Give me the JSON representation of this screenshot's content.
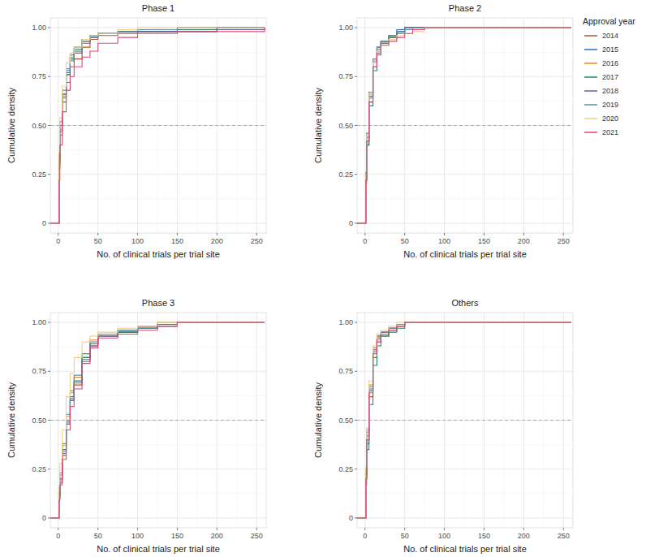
{
  "chart_data": [
    {
      "type": "line",
      "title": "Phase 1",
      "x_label": "No. of clinical trials per trial site",
      "y_label": "Cumulative density",
      "line_style": "step",
      "grid": true,
      "legend": "right",
      "legend_title": "Approval year",
      "hline": 0.5,
      "xlim": [
        -10,
        262
      ],
      "ylim": [
        -0.05,
        1.05
      ],
      "xticks": [
        0,
        50,
        100,
        150,
        200,
        250
      ],
      "yticks": [
        0,
        0.25,
        {
          "value": 0.5,
          "label": "0.50"
        },
        0.75,
        {
          "value": 1,
          "label": "1.00"
        }
      ],
      "x": [
        -10,
        1,
        2,
        5,
        10,
        15,
        20,
        30,
        40,
        50,
        75,
        100,
        150,
        200,
        260
      ],
      "series": [
        {
          "name": "2014",
          "color": "#b5532a",
          "values": [
            0,
            0.28,
            0.45,
            0.62,
            0.72,
            0.8,
            0.84,
            0.9,
            0.94,
            0.96,
            0.97,
            0.98,
            0.98,
            1,
            1
          ]
        },
        {
          "name": "2015",
          "color": "#2b6cb0",
          "values": [
            0,
            0.32,
            0.5,
            0.66,
            0.78,
            0.86,
            0.9,
            0.94,
            0.96,
            0.97,
            0.98,
            0.99,
            0.99,
            1,
            1
          ]
        },
        {
          "name": "2016",
          "color": "#e08a1e",
          "values": [
            0,
            0.3,
            0.48,
            0.65,
            0.76,
            0.84,
            0.88,
            0.93,
            0.95,
            0.97,
            0.98,
            0.99,
            1,
            1,
            1
          ]
        },
        {
          "name": "2017",
          "color": "#1f8a6a",
          "values": [
            0,
            0.3,
            0.47,
            0.64,
            0.76,
            0.84,
            0.89,
            0.94,
            0.96,
            0.97,
            0.98,
            0.98,
            0.99,
            1,
            1
          ]
        },
        {
          "name": "2018",
          "color": "#6d5f9e",
          "values": [
            0,
            0.33,
            0.5,
            0.66,
            0.77,
            0.83,
            0.87,
            0.92,
            0.95,
            0.97,
            0.98,
            0.98,
            0.98,
            0.99,
            1
          ]
        },
        {
          "name": "2019",
          "color": "#5b8fa8",
          "values": [
            0,
            0.35,
            0.52,
            0.68,
            0.79,
            0.85,
            0.88,
            0.93,
            0.95,
            0.97,
            0.98,
            0.99,
            1,
            1,
            1
          ]
        },
        {
          "name": "2020",
          "color": "#f0d08a",
          "values": [
            0,
            0.36,
            0.54,
            0.7,
            0.82,
            0.87,
            0.9,
            0.94,
            0.96,
            0.97,
            0.99,
            1,
            1,
            1,
            1
          ]
        },
        {
          "name": "2021",
          "color": "#d94a7a",
          "values": [
            0,
            0.22,
            0.4,
            0.57,
            0.68,
            0.75,
            0.8,
            0.85,
            0.88,
            0.92,
            0.95,
            0.97,
            0.98,
            0.98,
            1
          ]
        }
      ]
    },
    {
      "type": "line",
      "title": "Phase 2",
      "x_label": "No. of clinical trials per trial site",
      "y_label": "Cumulative density",
      "line_style": "step",
      "grid": true,
      "hline": 0.5,
      "xlim": [
        -10,
        262
      ],
      "ylim": [
        -0.05,
        1.05
      ],
      "xticks": [
        0,
        50,
        100,
        150,
        200,
        250
      ],
      "yticks": [
        0,
        0.25,
        {
          "value": 0.5,
          "label": "0.50"
        },
        0.75,
        {
          "value": 1,
          "label": "1.00"
        }
      ],
      "x": [
        -10,
        1,
        2,
        5,
        10,
        15,
        20,
        30,
        40,
        50,
        60,
        75,
        100,
        150,
        260
      ],
      "series": [
        {
          "name": "2014",
          "color": "#b5532a",
          "values": [
            0,
            0.2,
            0.4,
            0.62,
            0.8,
            0.88,
            0.92,
            0.95,
            0.98,
            1,
            1,
            1,
            1,
            1,
            1
          ]
        },
        {
          "name": "2015",
          "color": "#2b6cb0",
          "values": [
            0,
            0.22,
            0.42,
            0.65,
            0.82,
            0.9,
            0.93,
            0.96,
            0.99,
            1,
            1,
            1,
            1,
            1,
            1
          ]
        },
        {
          "name": "2016",
          "color": "#e08a1e",
          "values": [
            0,
            0.25,
            0.45,
            0.66,
            0.83,
            0.9,
            0.93,
            0.96,
            0.98,
            0.99,
            1,
            1,
            1,
            1,
            1
          ]
        },
        {
          "name": "2017",
          "color": "#1f8a6a",
          "values": [
            0,
            0.22,
            0.4,
            0.6,
            0.78,
            0.86,
            0.92,
            0.95,
            0.97,
            0.99,
            1,
            1,
            1,
            1,
            1
          ]
        },
        {
          "name": "2018",
          "color": "#6d5f9e",
          "values": [
            0,
            0.24,
            0.44,
            0.64,
            0.82,
            0.89,
            0.93,
            0.96,
            0.98,
            1,
            1,
            1,
            1,
            1,
            1
          ]
        },
        {
          "name": "2019",
          "color": "#5b8fa8",
          "values": [
            0,
            0.26,
            0.46,
            0.67,
            0.84,
            0.9,
            0.93,
            0.96,
            0.98,
            0.99,
            1,
            1,
            1,
            1,
            1
          ]
        },
        {
          "name": "2020",
          "color": "#f0d08a",
          "values": [
            0,
            0.25,
            0.45,
            0.66,
            0.82,
            0.88,
            0.91,
            0.94,
            0.96,
            0.97,
            0.98,
            1,
            1,
            1,
            1
          ]
        },
        {
          "name": "2021",
          "color": "#d94a7a",
          "values": [
            0,
            0.22,
            0.42,
            0.62,
            0.8,
            0.87,
            0.91,
            0.93,
            0.95,
            0.97,
            0.99,
            1,
            1,
            1,
            1
          ]
        }
      ]
    },
    {
      "type": "line",
      "title": "Phase 3",
      "x_label": "No. of clinical trials per trial site",
      "y_label": "Cumulative density",
      "line_style": "step",
      "grid": true,
      "hline": 0.5,
      "xlim": [
        -10,
        262
      ],
      "ylim": [
        -0.05,
        1.05
      ],
      "xticks": [
        0,
        50,
        100,
        150,
        200,
        250
      ],
      "yticks": [
        0,
        0.25,
        {
          "value": 0.5,
          "label": "0.50"
        },
        0.75,
        {
          "value": 1,
          "label": "1.00"
        }
      ],
      "x": [
        -10,
        1,
        2,
        5,
        10,
        15,
        20,
        30,
        40,
        50,
        75,
        100,
        125,
        150,
        260
      ],
      "series": [
        {
          "name": "2014",
          "color": "#b5532a",
          "values": [
            0,
            0.1,
            0.18,
            0.32,
            0.48,
            0.6,
            0.68,
            0.8,
            0.88,
            0.93,
            0.95,
            0.97,
            0.99,
            1,
            1
          ]
        },
        {
          "name": "2015",
          "color": "#2b6cb0",
          "values": [
            0,
            0.12,
            0.2,
            0.35,
            0.5,
            0.62,
            0.7,
            0.82,
            0.89,
            0.94,
            0.95,
            0.97,
            0.99,
            1,
            1
          ]
        },
        {
          "name": "2016",
          "color": "#e08a1e",
          "values": [
            0,
            0.12,
            0.22,
            0.37,
            0.52,
            0.64,
            0.72,
            0.84,
            0.91,
            0.94,
            0.96,
            0.98,
            1,
            1,
            1
          ]
        },
        {
          "name": "2017",
          "color": "#1f8a6a",
          "values": [
            0,
            0.11,
            0.2,
            0.34,
            0.49,
            0.61,
            0.7,
            0.82,
            0.89,
            0.93,
            0.95,
            0.97,
            0.99,
            1,
            1
          ]
        },
        {
          "name": "2018",
          "color": "#6d5f9e",
          "values": [
            0,
            0.1,
            0.19,
            0.33,
            0.48,
            0.6,
            0.69,
            0.81,
            0.88,
            0.93,
            0.96,
            0.98,
            0.99,
            1,
            1
          ]
        },
        {
          "name": "2019",
          "color": "#5b8fa8",
          "values": [
            0,
            0.13,
            0.23,
            0.38,
            0.53,
            0.65,
            0.73,
            0.84,
            0.9,
            0.94,
            0.96,
            0.97,
            0.98,
            1,
            1
          ]
        },
        {
          "name": "2020",
          "color": "#f0d08a",
          "values": [
            0,
            0.16,
            0.28,
            0.45,
            0.62,
            0.74,
            0.82,
            0.9,
            0.93,
            0.95,
            0.97,
            0.98,
            1,
            1,
            1
          ]
        },
        {
          "name": "2021",
          "color": "#d94a7a",
          "values": [
            0,
            0.09,
            0.17,
            0.3,
            0.45,
            0.57,
            0.66,
            0.79,
            0.87,
            0.92,
            0.94,
            0.96,
            0.98,
            1,
            1
          ]
        }
      ]
    },
    {
      "type": "line",
      "title": "Others",
      "x_label": "No. of clinical trials per trial site",
      "y_label": "Cumulative density",
      "line_style": "step",
      "grid": true,
      "hline": 0.5,
      "xlim": [
        -10,
        262
      ],
      "ylim": [
        -0.05,
        1.05
      ],
      "xticks": [
        0,
        50,
        100,
        150,
        200,
        250
      ],
      "yticks": [
        0,
        0.25,
        {
          "value": 0.5,
          "label": "0.50"
        },
        0.75,
        {
          "value": 1,
          "label": "1.00"
        }
      ],
      "x": [
        -10,
        1,
        2,
        5,
        10,
        15,
        20,
        30,
        40,
        50,
        60,
        75,
        100,
        150,
        260
      ],
      "series": [
        {
          "name": "2014",
          "color": "#b5532a",
          "values": [
            0,
            0.2,
            0.38,
            0.62,
            0.82,
            0.9,
            0.93,
            0.96,
            0.98,
            1,
            1,
            1,
            1,
            1,
            1
          ]
        },
        {
          "name": "2015",
          "color": "#2b6cb0",
          "values": [
            0,
            0.22,
            0.4,
            0.65,
            0.85,
            0.92,
            0.94,
            0.97,
            0.99,
            1,
            1,
            1,
            1,
            1,
            1
          ]
        },
        {
          "name": "2016",
          "color": "#e08a1e",
          "values": [
            0,
            0.25,
            0.45,
            0.68,
            0.87,
            0.93,
            0.95,
            0.97,
            0.99,
            1,
            1,
            1,
            1,
            1,
            1
          ]
        },
        {
          "name": "2017",
          "color": "#1f8a6a",
          "values": [
            0,
            0.17,
            0.35,
            0.58,
            0.78,
            0.88,
            0.93,
            0.95,
            0.97,
            1,
            1,
            1,
            1,
            1,
            1
          ]
        },
        {
          "name": "2018",
          "color": "#6d5f9e",
          "values": [
            0,
            0.22,
            0.42,
            0.66,
            0.86,
            0.93,
            0.95,
            0.97,
            0.99,
            1,
            1,
            1,
            1,
            1,
            1
          ]
        },
        {
          "name": "2019",
          "color": "#5b8fa8",
          "values": [
            0,
            0.24,
            0.44,
            0.67,
            0.86,
            0.92,
            0.95,
            0.97,
            0.99,
            1,
            1,
            1,
            1,
            1,
            1
          ]
        },
        {
          "name": "2020",
          "color": "#f0d08a",
          "values": [
            0,
            0.26,
            0.46,
            0.7,
            0.88,
            0.94,
            0.96,
            0.98,
            1,
            1,
            1,
            1,
            1,
            1,
            1
          ]
        },
        {
          "name": "2021",
          "color": "#d94a7a",
          "values": [
            0,
            0.2,
            0.4,
            0.64,
            0.84,
            0.91,
            0.94,
            0.96,
            0.98,
            1,
            1,
            1,
            1,
            1,
            1
          ]
        }
      ]
    }
  ]
}
